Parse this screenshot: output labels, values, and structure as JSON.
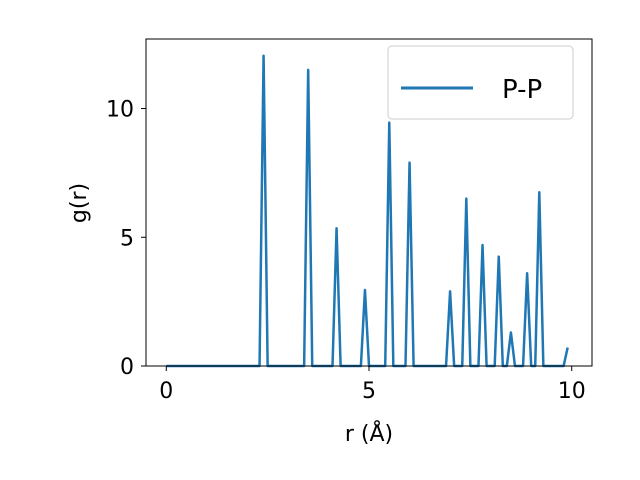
{
  "chart_data": {
    "type": "line",
    "xlabel": "r (Å)",
    "ylabel": "g(r)",
    "xlim": [
      -0.5,
      10.5
    ],
    "ylim": [
      0,
      12.7
    ],
    "xticks": [
      0,
      5,
      10
    ],
    "yticks": [
      0,
      5,
      10
    ],
    "grid": false,
    "legend_position": "top-right",
    "series": [
      {
        "name": "P-P",
        "color": "#1f77b4",
        "x": [
          0,
          2.3,
          2.4,
          2.5,
          3.4,
          3.5,
          3.6,
          4.1,
          4.2,
          4.3,
          4.8,
          4.9,
          5.0,
          5.4,
          5.5,
          5.6,
          5.9,
          6.0,
          6.1,
          6.9,
          7.0,
          7.1,
          7.3,
          7.4,
          7.5,
          7.7,
          7.8,
          7.9,
          8.1,
          8.2,
          8.3,
          8.4,
          8.5,
          8.6,
          8.8,
          8.9,
          9.0,
          9.1,
          9.2,
          9.3,
          9.8,
          9.9
        ],
        "y": [
          0,
          0,
          12.05,
          0,
          0,
          11.5,
          0,
          0,
          5.35,
          0,
          0,
          2.95,
          0,
          0,
          9.45,
          0,
          0,
          7.9,
          0,
          0,
          2.9,
          0,
          0,
          6.5,
          0,
          0,
          4.7,
          0,
          0,
          4.25,
          0,
          0,
          1.3,
          0,
          0,
          3.6,
          0,
          0,
          6.75,
          0,
          0,
          0.72
        ]
      }
    ]
  }
}
